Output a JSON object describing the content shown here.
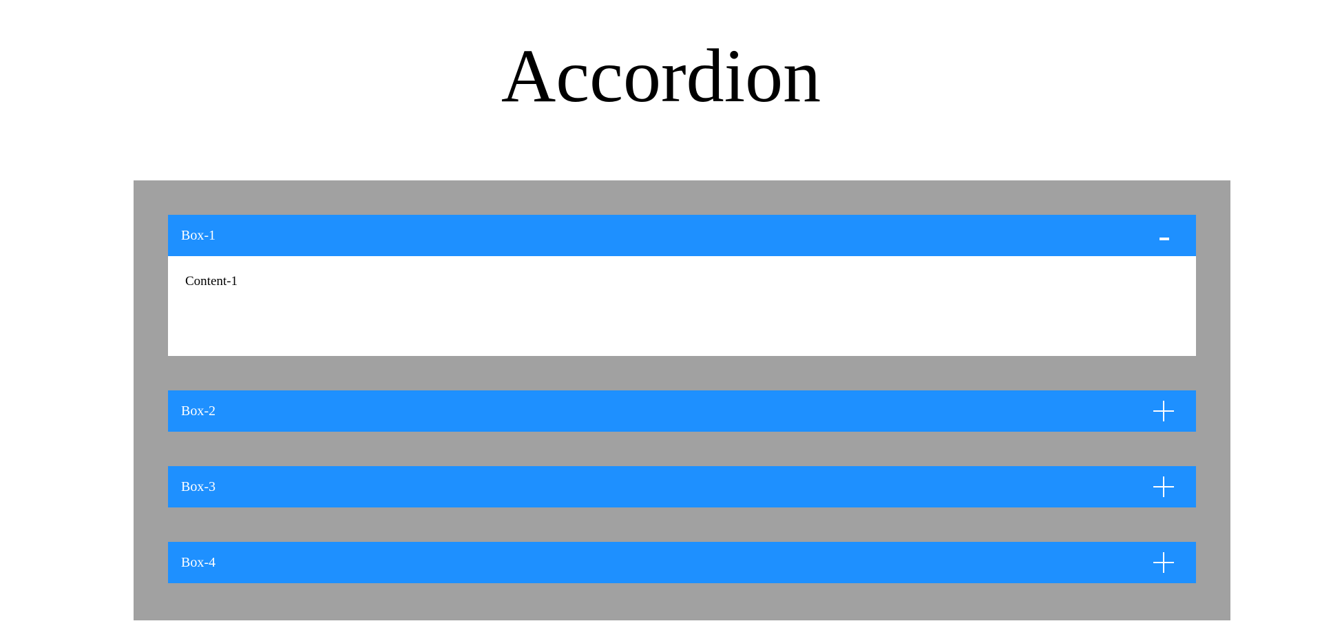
{
  "page": {
    "title": "Accordion"
  },
  "colors": {
    "container_bg": "#a1a1a1",
    "header_bg": "#1e90ff",
    "header_text": "#ffffff",
    "content_bg": "#ffffff",
    "content_text": "#000000"
  },
  "accordion": {
    "items": [
      {
        "label": "Box-1",
        "expanded": true,
        "toggle_icon": "minus-icon",
        "content": "Content-1"
      },
      {
        "label": "Box-2",
        "expanded": false,
        "toggle_icon": "plus-icon"
      },
      {
        "label": "Box-3",
        "expanded": false,
        "toggle_icon": "plus-icon"
      },
      {
        "label": "Box-4",
        "expanded": false,
        "toggle_icon": "plus-icon"
      }
    ]
  }
}
